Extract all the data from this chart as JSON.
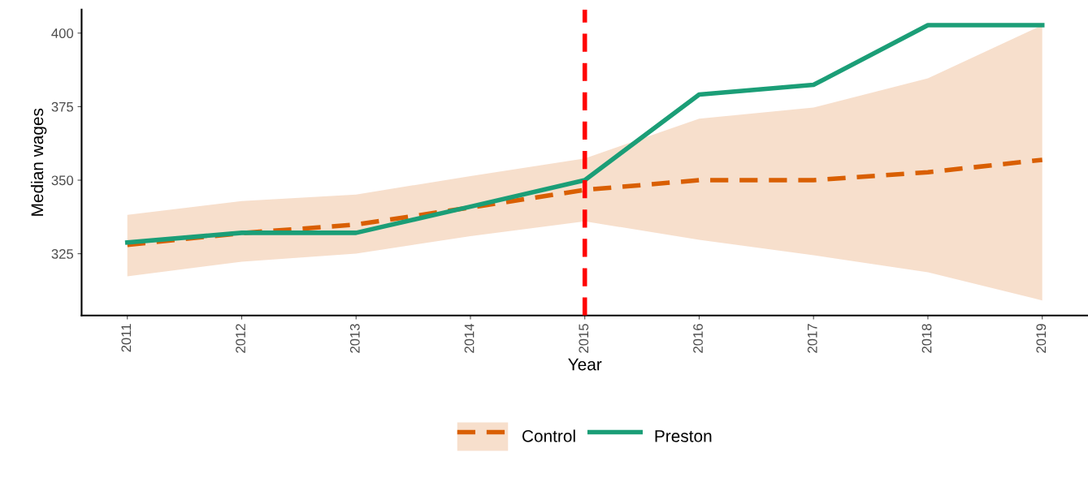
{
  "chart_data": {
    "type": "line",
    "xlabel": "Year",
    "ylabel": "Median wages",
    "x": [
      2011,
      2012,
      2013,
      2014,
      2015,
      2016,
      2017,
      2018,
      2019
    ],
    "xlim": [
      2010.6,
      2019.4
    ],
    "xticks": [
      2011,
      2012,
      2013,
      2014,
      2015,
      2016,
      2017,
      2018,
      2019
    ],
    "ylim": [
      304,
      408
    ],
    "yticks": [
      325,
      350,
      375,
      400
    ],
    "series": [
      {
        "name": "Control",
        "color": "#d95f02",
        "line_style": "dashed",
        "values": [
          328,
          332,
          334.9,
          340.7,
          346.7,
          350,
          350,
          352.7,
          356.9
        ],
        "lower": [
          317.3,
          322.3,
          325,
          331,
          336,
          329.7,
          324.5,
          318.7,
          309.1
        ],
        "upper": [
          338.2,
          342.9,
          345.1,
          351.4,
          357.4,
          370.9,
          374.7,
          384.6,
          402.7
        ]
      },
      {
        "name": "Preston",
        "color": "#1b9e77",
        "line_style": "solid",
        "values": [
          328.8,
          332.1,
          332.1,
          341,
          350,
          379.1,
          382.4,
          402.7,
          402.7
        ]
      }
    ],
    "ref_lines": [
      {
        "axis": "x",
        "value": 2015,
        "color": "#ff0000",
        "line_style": "dashed"
      }
    ],
    "grid": false,
    "legend": "bottom"
  }
}
